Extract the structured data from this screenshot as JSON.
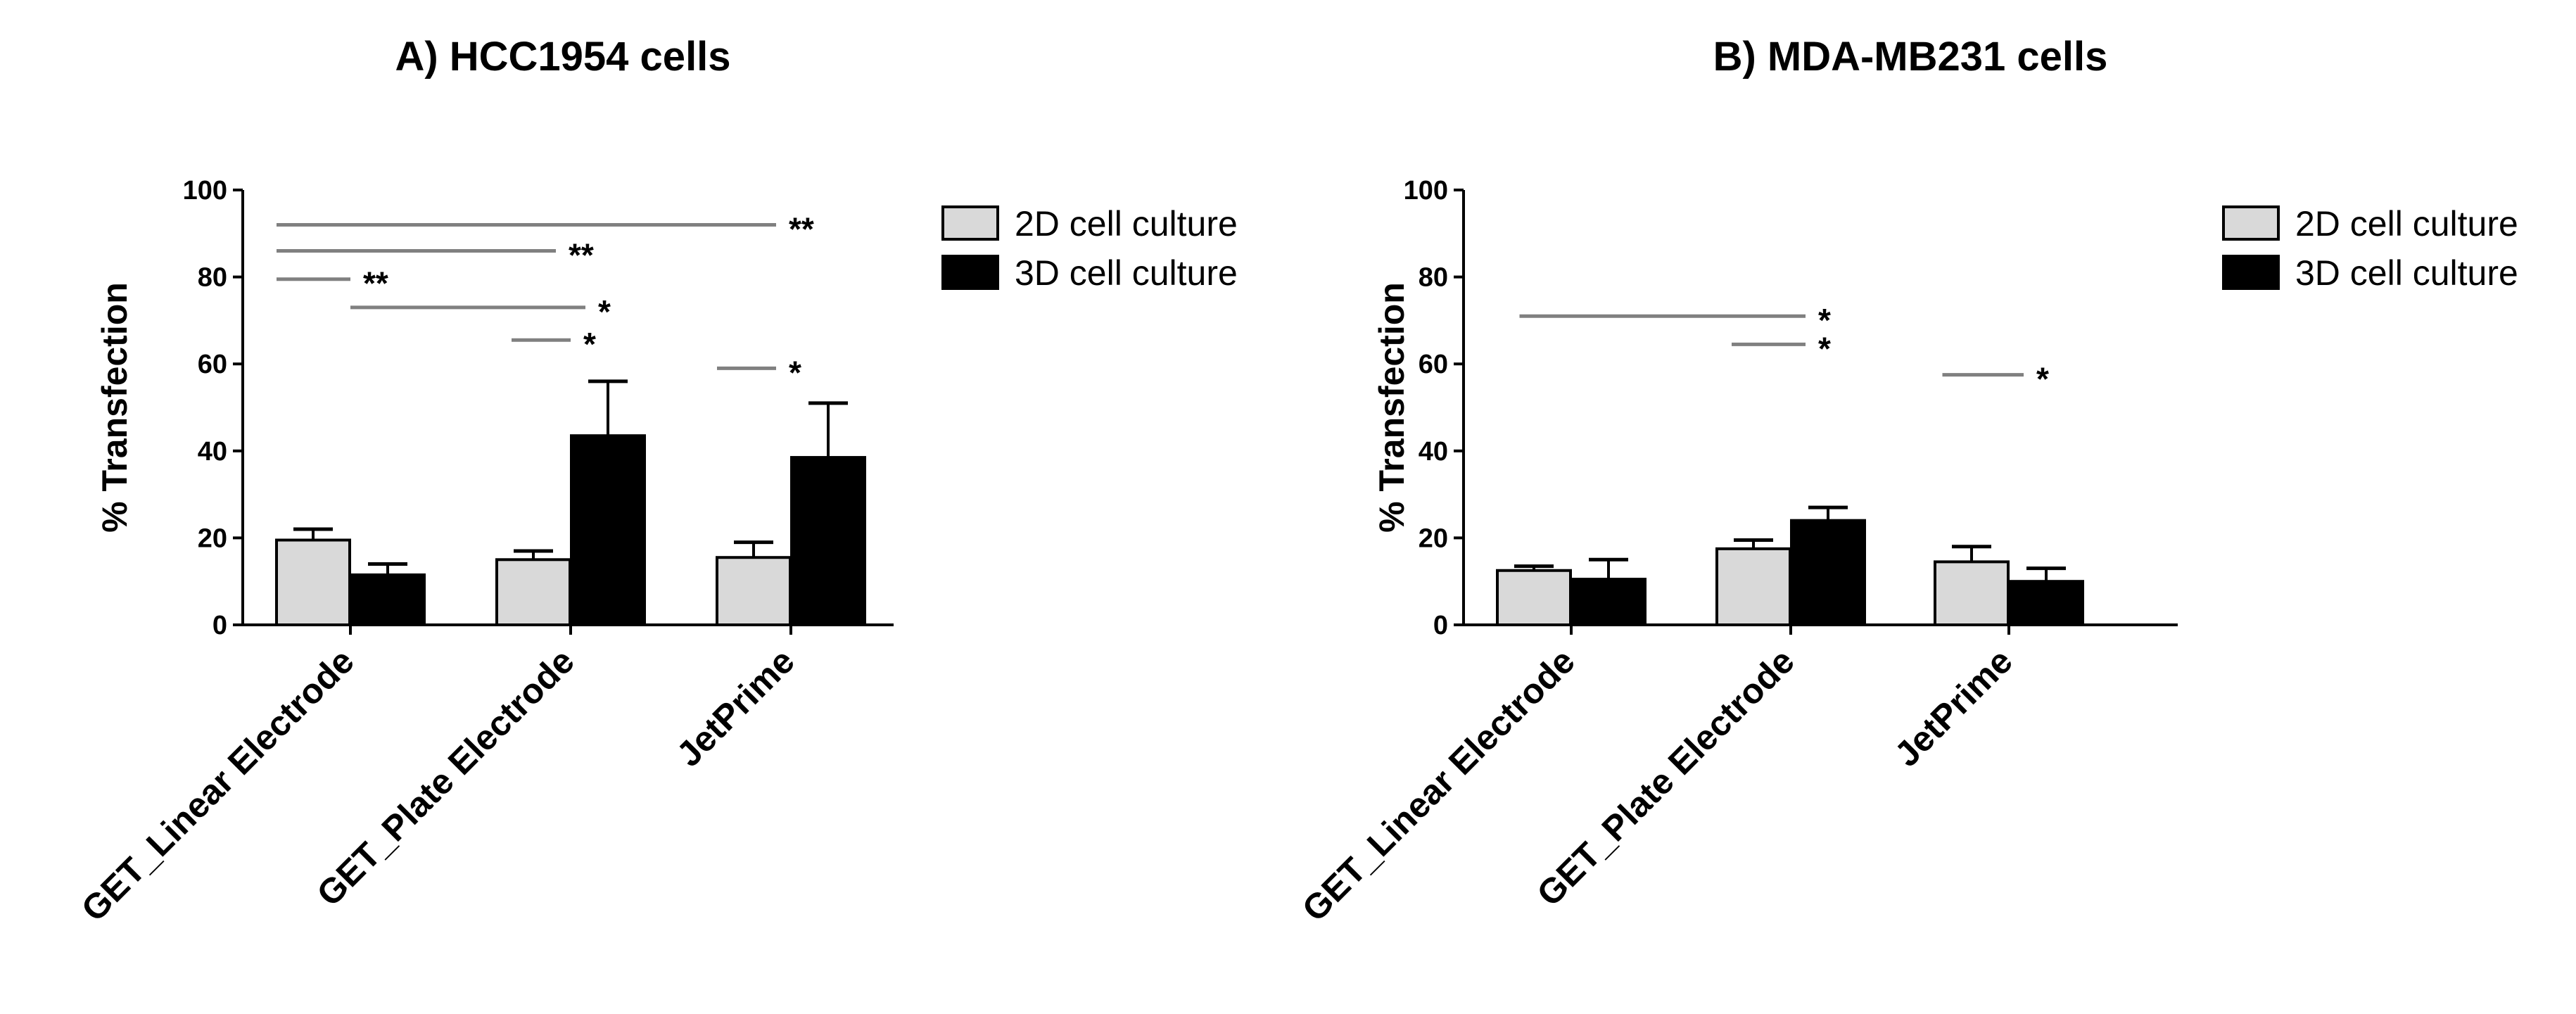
{
  "chart_data": [
    {
      "type": "bar",
      "title": "A)  HCC1954 cells",
      "ylabel": "% Transfection",
      "xlabel": "",
      "ylim": [
        0,
        100
      ],
      "yticks": [
        "0",
        "20",
        "40",
        "60",
        "80",
        "100"
      ],
      "categories": [
        "GET_Linear Electrode",
        "GET_Plate Electrode",
        "JetPrime"
      ],
      "legend_position": "top-right",
      "series": [
        {
          "name": "2D cell culture",
          "color": "#d9d9d9",
          "values": [
            19.5,
            15,
            15.5
          ],
          "errors": [
            2.5,
            2,
            3.5
          ]
        },
        {
          "name": "3D cell culture",
          "color": "#000000",
          "values": [
            11.5,
            43.5,
            38.5
          ],
          "errors": [
            2.5,
            12.5,
            12.5
          ]
        }
      ],
      "significance": [
        {
          "y": 92,
          "from": 0,
          "to": 2.4,
          "label": "**"
        },
        {
          "y": 86,
          "from": 0,
          "to": 1.4,
          "label": "**"
        },
        {
          "y": 79.5,
          "from": 0,
          "to": 0.5,
          "label": "**"
        },
        {
          "y": 73,
          "from": 0.5,
          "to": 1.6,
          "label": "*"
        },
        {
          "y": 65.5,
          "from": 1.1,
          "to": 1.5,
          "label": "*"
        },
        {
          "y": 59,
          "from": 2,
          "to": 2.4,
          "label": "*"
        }
      ]
    },
    {
      "type": "bar",
      "title": "B)  MDA-MB231 cells",
      "ylabel": "% Transfection",
      "xlabel": "",
      "ylim": [
        0,
        100
      ],
      "yticks": [
        "0",
        "20",
        "40",
        "60",
        "80",
        "100"
      ],
      "categories": [
        "GET_Linear Electrode",
        "GET_Plate Electrode",
        "JetPrime"
      ],
      "legend_position": "top-right",
      "series": [
        {
          "name": "2D cell culture",
          "color": "#d9d9d9",
          "values": [
            12.5,
            17.5,
            14.5
          ],
          "errors": [
            1,
            2,
            3.5
          ]
        },
        {
          "name": "3D cell culture",
          "color": "#000000",
          "values": [
            10.5,
            24,
            10
          ],
          "errors": [
            4.5,
            3,
            3
          ]
        }
      ],
      "significance": [
        {
          "y": 71,
          "from": 0.15,
          "to": 1.6,
          "label": "*"
        },
        {
          "y": 64.5,
          "from": 1.1,
          "to": 1.6,
          "label": "*"
        },
        {
          "y": 57.5,
          "from": 2.05,
          "to": 2.6,
          "label": "*"
        }
      ]
    }
  ]
}
